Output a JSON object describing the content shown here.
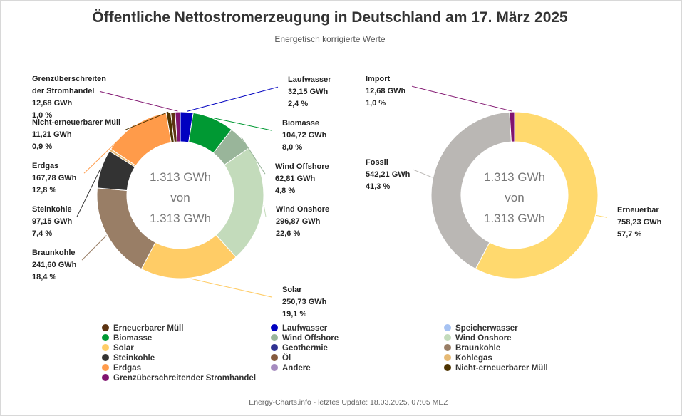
{
  "chart_data": [
    {
      "type": "donut",
      "title": "Öffentliche Nettostromerzeugung in Deutschland am 17. März 2025",
      "subtitle": "Energetisch korrigierte Werte",
      "center_text": [
        "1.313 GWh",
        "von",
        "1.313 GWh"
      ],
      "unit": "GWh",
      "slices": [
        {
          "name": "Laufwasser",
          "value": 32.15,
          "value_text": "32,15 GWh",
          "percent_text": "2,4 %",
          "color": "#0000c0"
        },
        {
          "name": "Biomasse",
          "value": 104.72,
          "value_text": "104,72 GWh",
          "percent_text": "8,0 %",
          "color": "#009933"
        },
        {
          "name": "Wind Offshore",
          "value": 62.81,
          "value_text": "62,81 GWh",
          "percent_text": "4,8 %",
          "color": "#99b59a"
        },
        {
          "name": "Wind Onshore",
          "value": 296.87,
          "value_text": "296,87 GWh",
          "percent_text": "22,6 %",
          "color": "#c3dbbb"
        },
        {
          "name": "Solar",
          "value": 250.73,
          "value_text": "250,73 GWh",
          "percent_text": "19,1 %",
          "color": "#ffcc66"
        },
        {
          "name": "Braunkohle",
          "value": 241.6,
          "value_text": "241,60 GWh",
          "percent_text": "18,4 %",
          "color": "#997e66"
        },
        {
          "name": "Steinkohle",
          "value": 97.15,
          "value_text": "97,15 GWh",
          "percent_text": "7,4 %",
          "color": "#333333"
        },
        {
          "name": "Kohlegas",
          "value": 6.0,
          "value_text": "",
          "percent_text": "",
          "color": "#e6b974"
        },
        {
          "name": "Erdgas",
          "value": 167.78,
          "value_text": "167,78 GWh",
          "percent_text": "12,8 %",
          "color": "#ff9b4a"
        },
        {
          "name": "Nicht-erneuerbarer Müll",
          "value": 11.21,
          "value_text": "11,21 GWh",
          "percent_text": "0,9 %",
          "color": "#4d3300"
        },
        {
          "name": "Erneuerbarer Müll",
          "value": 11.0,
          "value_text": "",
          "percent_text": "",
          "color": "#5c3311"
        },
        {
          "name": "Grenzüberschreitender Stromhandel",
          "value": 12.68,
          "value_text": "12,68 GWh",
          "percent_text": "1,0 %",
          "color": "#80136f"
        }
      ],
      "labels": [
        {
          "lines": [
            "Laufwasser",
            "32,15 GWh",
            "2,4 %"
          ],
          "color": "#0000c0"
        },
        {
          "lines": [
            "Biomasse",
            "104,72 GWh",
            "8,0 %"
          ],
          "color": "#009933"
        },
        {
          "lines": [
            "Wind Offshore",
            "62,81 GWh",
            "4,8 %"
          ],
          "color": "#99b59a"
        },
        {
          "lines": [
            "Wind Onshore",
            "296,87 GWh",
            "22,6 %"
          ],
          "color": "#c3dbbb"
        },
        {
          "lines": [
            "Solar",
            "250,73 GWh",
            "19,1 %"
          ],
          "color": "#ffcc66"
        },
        {
          "lines": [
            "Braunkohle",
            "241,60 GWh",
            "18,4 %"
          ],
          "color": "#997e66"
        },
        {
          "lines": [
            "Steinkohle",
            "97,15 GWh",
            "7,4 %"
          ],
          "color": "#333333"
        },
        {
          "lines": [
            "Erdgas",
            "167,78 GWh",
            "12,8 %"
          ],
          "color": "#ff9b4a"
        },
        {
          "lines": [
            "Nicht-erneuerbarer Müll",
            "11,21 GWh",
            "0,9 %"
          ],
          "color": "#4d3300"
        },
        {
          "lines": [
            "Grenzüberschreiten",
            "der Stromhandel",
            "12,68 GWh",
            "1,0 %"
          ],
          "color": "#80136f"
        }
      ],
      "legend": {
        "placement": "bottom",
        "columns": 3,
        "items": [
          {
            "label": "Erneuerbarer Müll",
            "color": "#5c3311"
          },
          {
            "label": "Laufwasser",
            "color": "#0000c0"
          },
          {
            "label": "Speicherwasser",
            "color": "#a6c2f2"
          },
          {
            "label": "Biomasse",
            "color": "#009933"
          },
          {
            "label": "Wind Offshore",
            "color": "#99b59a"
          },
          {
            "label": "Wind Onshore",
            "color": "#c3dbbb"
          },
          {
            "label": "Solar",
            "color": "#ffcc66"
          },
          {
            "label": "Geothermie",
            "color": "#2e3191"
          },
          {
            "label": "Braunkohle",
            "color": "#997e66"
          },
          {
            "label": "Steinkohle",
            "color": "#333333"
          },
          {
            "label": "Öl",
            "color": "#845a3d"
          },
          {
            "label": "Kohlegas",
            "color": "#e6b974"
          },
          {
            "label": "Erdgas",
            "color": "#ff9b4a"
          },
          {
            "label": "Andere",
            "color": "#a58bbf"
          },
          {
            "label": "Nicht-erneuerbarer Müll",
            "color": "#4d3300"
          },
          {
            "label": "Grenzüberschreitender Stromhandel",
            "color": "#80136f"
          }
        ]
      }
    },
    {
      "type": "donut",
      "center_text": [
        "1.313 GWh",
        "von",
        "1.313 GWh"
      ],
      "unit": "GWh",
      "slices": [
        {
          "name": "Erneuerbar",
          "value": 758.23,
          "value_text": "758,23 GWh",
          "percent_text": "57,7 %",
          "color": "#ffd96e"
        },
        {
          "name": "Fossil",
          "value": 542.21,
          "value_text": "542,21 GWh",
          "percent_text": "41,3 %",
          "color": "#bab7b4"
        },
        {
          "name": "Import",
          "value": 12.68,
          "value_text": "12,68 GWh",
          "percent_text": "1,0 %",
          "color": "#80136f"
        }
      ],
      "labels": [
        {
          "lines": [
            "Erneuerbar",
            "758,23 GWh",
            "57,7 %"
          ],
          "color": "#ffd96e"
        },
        {
          "lines": [
            "Fossil",
            "542,21 GWh",
            "41,3 %"
          ],
          "color": "#bab7b4"
        },
        {
          "lines": [
            "Import",
            "12,68 GWh",
            "1,0 %"
          ],
          "color": "#80136f"
        }
      ]
    }
  ],
  "credits": "Energy-Charts.info - letztes Update: 18.03.2025, 07:05 MEZ"
}
